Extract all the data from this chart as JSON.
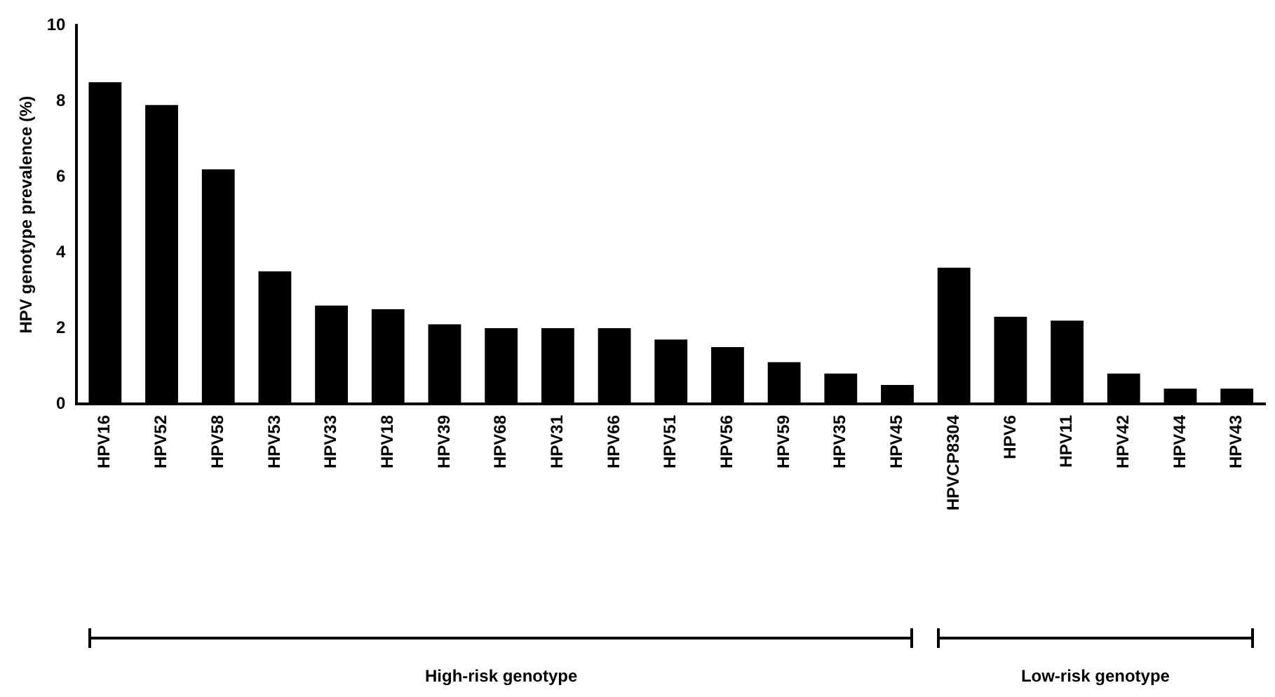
{
  "chart_data": {
    "type": "bar",
    "ylabel": "HPV genotype prevalence (%)",
    "categories": [
      "HPV16",
      "HPV52",
      "HPV58",
      "HPV53",
      "HPV33",
      "HPV18",
      "HPV39",
      "HPV68",
      "HPV31",
      "HPV66",
      "HPV51",
      "HPV56",
      "HPV59",
      "HPV35",
      "HPV45",
      "HPVCP8304",
      "HPV6",
      "HPV11",
      "HPV42",
      "HPV44",
      "HPV43"
    ],
    "values": [
      8.5,
      7.9,
      6.2,
      3.5,
      2.6,
      2.5,
      2.1,
      2.0,
      2.0,
      2.0,
      1.7,
      1.5,
      1.1,
      0.8,
      0.5,
      3.6,
      2.3,
      2.2,
      0.8,
      0.4,
      0.4
    ],
    "color": "#000000",
    "ylim": [
      0,
      10
    ],
    "yticks": [
      0,
      2,
      4,
      6,
      8,
      10
    ],
    "grid": false,
    "annotations": [
      "High-risk genotype",
      "Low-risk genotype"
    ]
  }
}
